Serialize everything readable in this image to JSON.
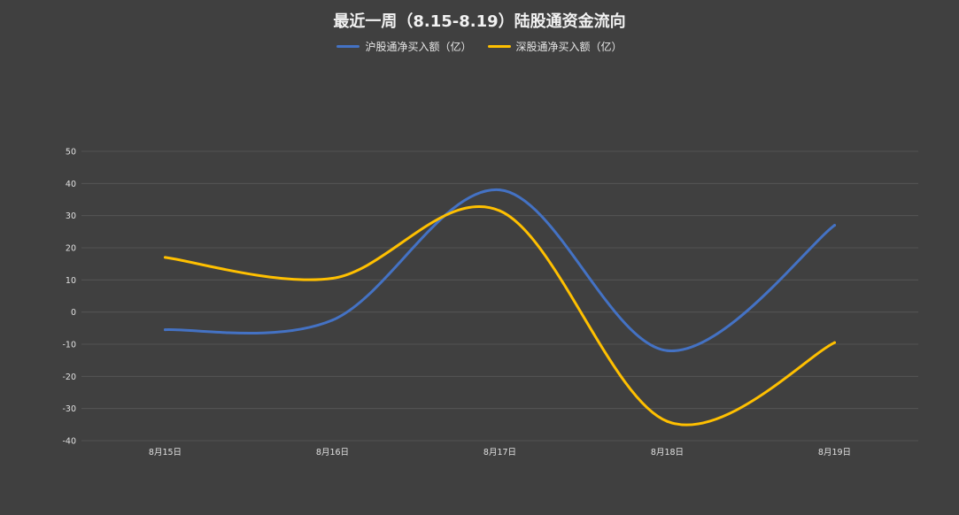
{
  "chart_data": {
    "type": "line",
    "title": "最近一周（8.15-8.19）陆股通资金流向",
    "categories": [
      "8月15日",
      "8月16日",
      "8月17日",
      "8月18日",
      "8月19日"
    ],
    "ylim": [
      -40,
      50
    ],
    "yticks": [
      50,
      40,
      30,
      20,
      10,
      0,
      -10,
      -20,
      -30,
      -40
    ],
    "grid": true,
    "legend": "top-center",
    "series": [
      {
        "name": "沪股通净买入额（亿）",
        "color": "#4472C4",
        "values": [
          -5.5,
          -2.5,
          38,
          -12,
          27
        ]
      },
      {
        "name": "深股通净买入额（亿）",
        "color": "#FFC000",
        "values": [
          17,
          10.5,
          31.5,
          -34,
          -9.5
        ]
      }
    ]
  },
  "colors": {
    "background": "#404040",
    "grid": "#595959"
  }
}
